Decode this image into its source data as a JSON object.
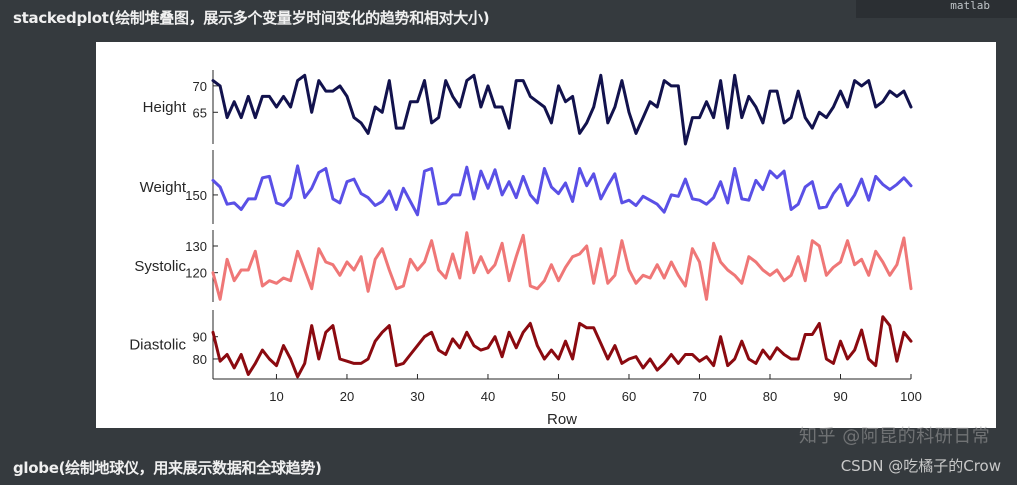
{
  "sections": {
    "first_heading": "stackedplot(绘制堆叠图，展示多个变量岁时间变化的趋势和相对大小)",
    "second_heading": "globe(绘制地球仪，用来展示数据和全球趋势)",
    "code_language": "matlab"
  },
  "watermarks": {
    "site": "知乎 @阿昆的科研日常",
    "csdn": "CSDN @吃橘子的Crow"
  },
  "chart_data": {
    "type": "line",
    "layout": "stacked",
    "xlabel": "Row",
    "xlim": [
      1,
      100
    ],
    "x_ticks": [
      "10",
      "20",
      "30",
      "40",
      "50",
      "60",
      "70",
      "80",
      "90",
      "100"
    ],
    "x_tick_values": [
      10,
      20,
      30,
      40,
      50,
      60,
      70,
      80,
      90,
      100
    ],
    "series": [
      {
        "name": "Height",
        "color": "#12124d",
        "ylim": [
          59,
          73
        ],
        "y_ticks": [
          "65",
          "70"
        ],
        "y_tick_values": [
          65,
          70
        ],
        "values": [
          71,
          70,
          64,
          67,
          64,
          68,
          64,
          68,
          68,
          66,
          68,
          66,
          71,
          72,
          65,
          71,
          69,
          69,
          70,
          68,
          64,
          63,
          61,
          66,
          65,
          71,
          62,
          62,
          67,
          67,
          71,
          63,
          64,
          71,
          68,
          66,
          71,
          72,
          66,
          70,
          66,
          66,
          62,
          71,
          71,
          68,
          67,
          66,
          63,
          70,
          67,
          68,
          61,
          63,
          66,
          72,
          63,
          66,
          71,
          65,
          61,
          64,
          67,
          66,
          71,
          70,
          70,
          59,
          64,
          64,
          67,
          64,
          71,
          62,
          72,
          64,
          68,
          66,
          63,
          69,
          69,
          63,
          64,
          69,
          64,
          62,
          65,
          64,
          66,
          69,
          66,
          71,
          70,
          71,
          66,
          67,
          69,
          68,
          69,
          66
        ]
      },
      {
        "name": "Weight",
        "color": "#5a50e6",
        "ylim": [
          128,
          184
        ],
        "y_ticks": [
          "150"
        ],
        "y_tick_values": [
          150
        ],
        "values": [
          161,
          156,
          143,
          144,
          139,
          147,
          147,
          163,
          164,
          144,
          142,
          148,
          172,
          148,
          155,
          167,
          170,
          147,
          144,
          160,
          162,
          151,
          148,
          142,
          145,
          153,
          139,
          155,
          145,
          135,
          168,
          170,
          143,
          144,
          150,
          150,
          171,
          147,
          168,
          155,
          169,
          150,
          160,
          148,
          164,
          150,
          144,
          170,
          156,
          151,
          159,
          145,
          170,
          157,
          166,
          147,
          157,
          166,
          144,
          146,
          142,
          149,
          146,
          143,
          137,
          150,
          149,
          162,
          147,
          146,
          143,
          148,
          160,
          144,
          170,
          147,
          146,
          161,
          154,
          168,
          163,
          168,
          139,
          143,
          156,
          160,
          140,
          141,
          151,
          158,
          142,
          150,
          162,
          146,
          164,
          158,
          154,
          158,
          163,
          157
        ]
      },
      {
        "name": "Systolic",
        "color": "#ef7777",
        "ylim": [
          109,
          136
        ],
        "y_ticks": [
          "120",
          "130"
        ],
        "y_tick_values": [
          120,
          130
        ],
        "values": [
          120,
          110,
          125,
          117,
          121,
          121,
          128,
          115,
          117,
          116,
          118,
          117,
          128,
          121,
          114,
          129,
          124,
          123,
          119,
          124,
          121,
          126,
          113,
          125,
          129,
          121,
          114,
          115,
          125,
          121,
          124,
          132,
          121,
          118,
          127,
          118,
          135,
          120,
          126,
          120,
          123,
          131,
          117,
          126,
          134,
          115,
          114,
          117,
          123,
          117,
          122,
          126,
          127,
          130,
          116,
          129,
          116,
          119,
          132,
          121,
          116,
          119,
          118,
          123,
          118,
          124,
          119,
          115,
          129,
          124,
          110,
          131,
          124,
          121,
          119,
          116,
          126,
          124,
          121,
          119,
          121,
          117,
          119,
          126,
          117,
          132,
          130,
          119,
          122,
          124,
          132,
          123,
          125,
          119,
          128,
          124,
          119,
          123,
          133,
          114
        ]
      },
      {
        "name": "Diastolic",
        "color": "#8b0a10",
        "ylim": [
          71,
          102
        ],
        "y_ticks": [
          "80",
          "90"
        ],
        "y_tick_values": [
          80,
          90
        ],
        "values": [
          92,
          79,
          82,
          76,
          82,
          73,
          78,
          84,
          80,
          77,
          86,
          80,
          72,
          78,
          95,
          80,
          92,
          95,
          80,
          79,
          78,
          78,
          80,
          88,
          92,
          95,
          77,
          78,
          82,
          86,
          90,
          92,
          84,
          82,
          89,
          85,
          92,
          86,
          84,
          85,
          90,
          81,
          92,
          85,
          92,
          96,
          86,
          80,
          84,
          80,
          88,
          80,
          96,
          94,
          94,
          87,
          80,
          86,
          78,
          80,
          81,
          76,
          80,
          75,
          78,
          82,
          78,
          82,
          82,
          79,
          81,
          77,
          90,
          77,
          80,
          88,
          80,
          78,
          84,
          80,
          85,
          82,
          80,
          80,
          91,
          91,
          96,
          80,
          78,
          88,
          80,
          84,
          93,
          80,
          77,
          99,
          95,
          79,
          92,
          88
        ]
      }
    ]
  }
}
